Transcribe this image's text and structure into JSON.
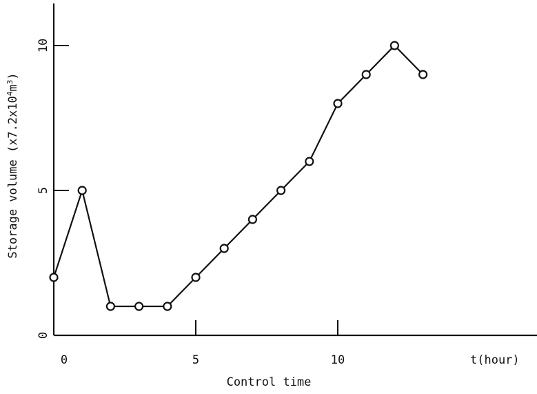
{
  "chart_data": {
    "type": "line",
    "title": "",
    "xlabel": "Control time",
    "x_unit_label": "t(hour)",
    "ylabel_parts": {
      "prefix": "Storage volume (x7.2x10",
      "exp1": "4",
      "middle": "m",
      "exp2": "3",
      "suffix": ")"
    },
    "xlim": [
      0,
      16.2
    ],
    "ylim": [
      0,
      11.5
    ],
    "x_ticks": [
      0,
      5,
      10
    ],
    "y_ticks": [
      0,
      5,
      10
    ],
    "grid": false,
    "series": [
      {
        "x": [
          0,
          1,
          2,
          3,
          4,
          5,
          6,
          7,
          8,
          9,
          10,
          11,
          12,
          13
        ],
        "values": [
          2,
          5,
          1,
          1,
          1,
          2,
          3,
          4,
          5,
          6,
          8,
          9,
          10,
          9
        ]
      }
    ],
    "marker": "open-circle",
    "line_color": "#111111"
  }
}
